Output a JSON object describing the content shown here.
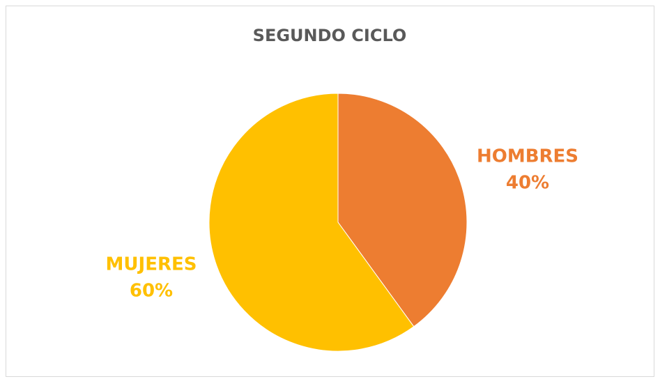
{
  "chart_data": {
    "type": "pie",
    "title": "SEGUNDO CICLO",
    "categories": [
      "HOMBRES",
      "MUJERES"
    ],
    "values": [
      40,
      60
    ],
    "value_labels": [
      "40%",
      "60%"
    ],
    "colors": [
      "#ED7D31",
      "#FFC000"
    ]
  }
}
